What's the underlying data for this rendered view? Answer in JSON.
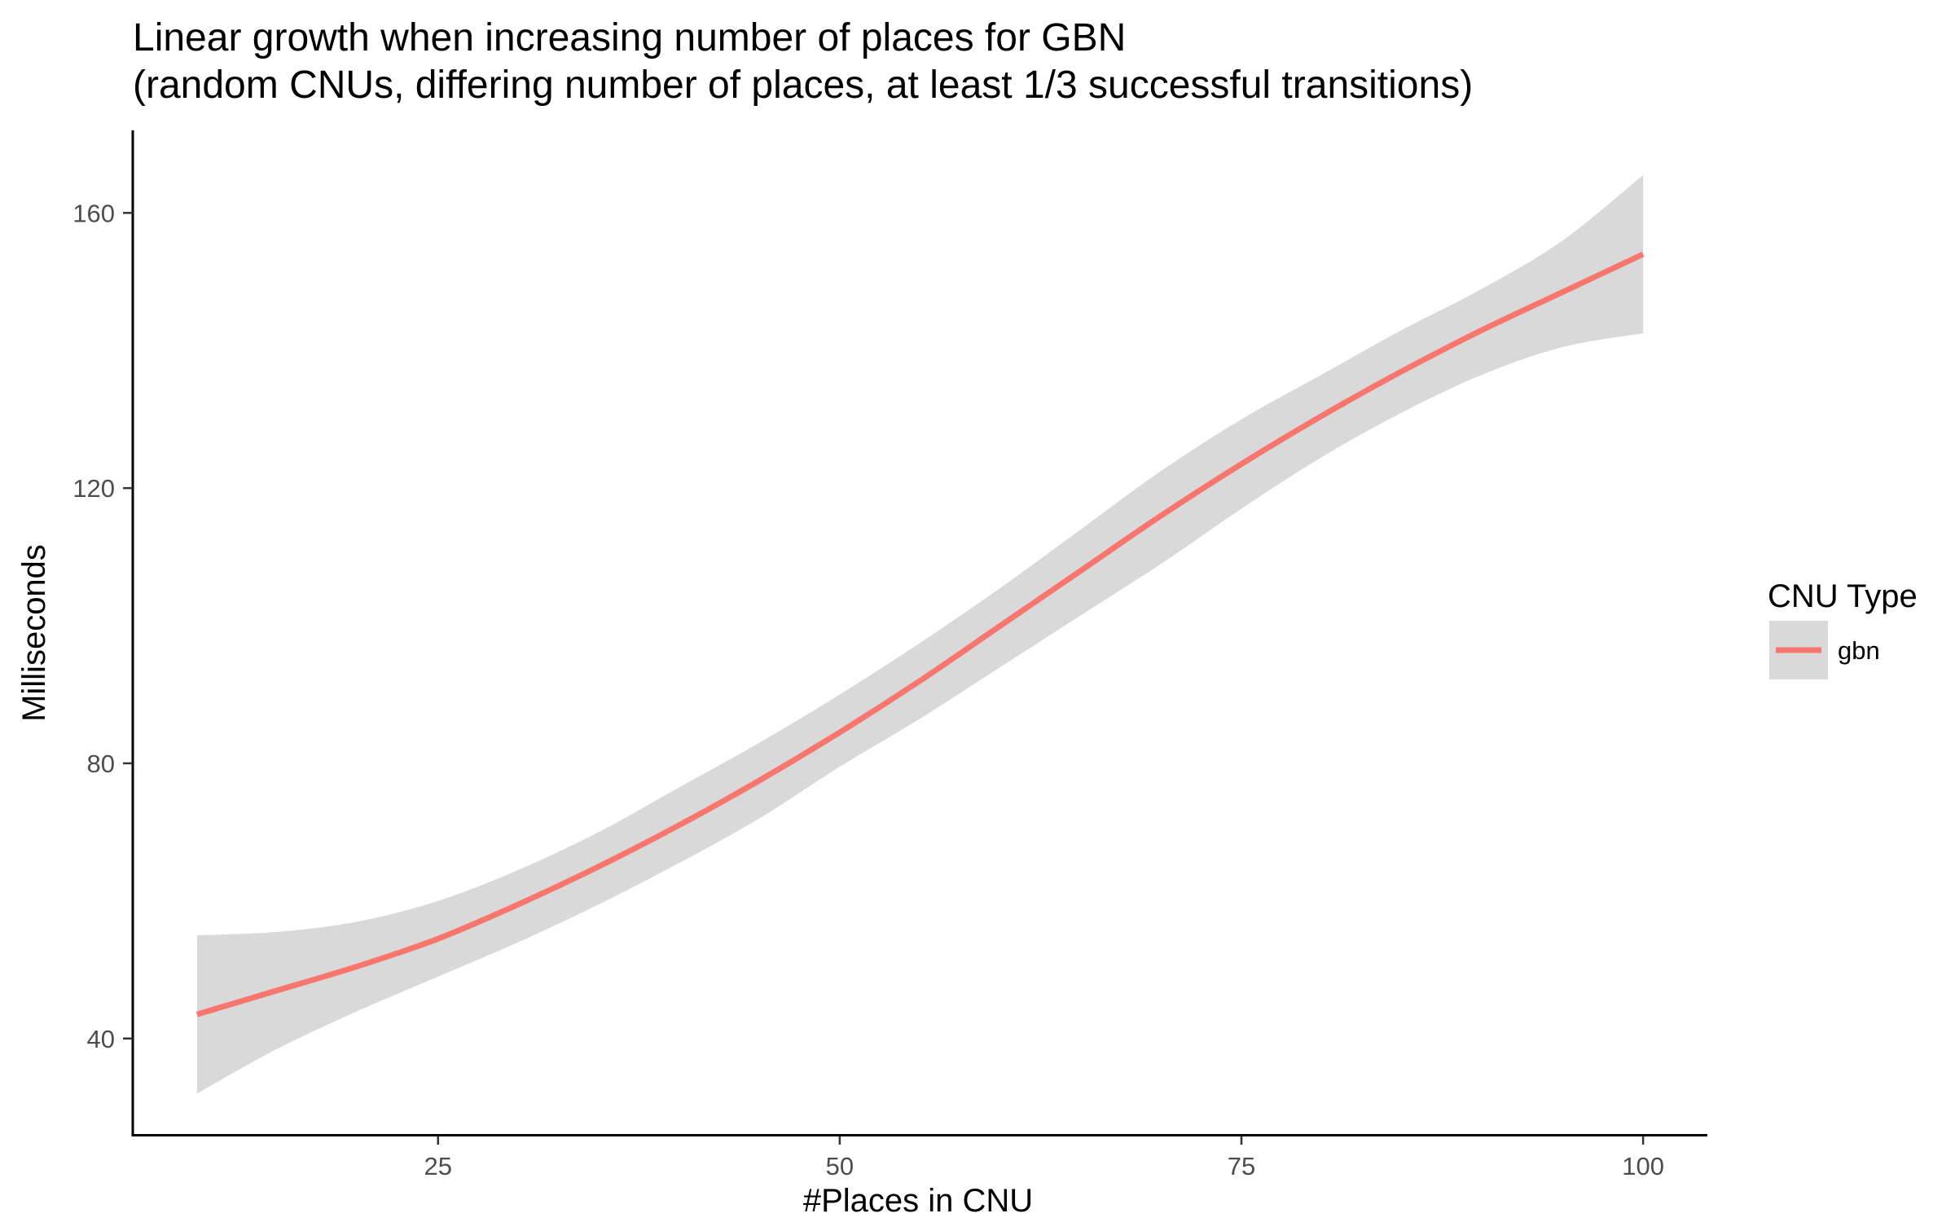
{
  "chart_data": {
    "type": "line",
    "title": "Linear growth when increasing number of places for GBN",
    "subtitle": "(random CNUs, differing number of places, at least 1/3 successful transitions)",
    "xlabel": "#Places in CNU",
    "ylabel": "Milliseconds",
    "xlim": [
      6,
      104
    ],
    "ylim": [
      26,
      172
    ],
    "xticks": [
      25,
      50,
      75,
      100
    ],
    "yticks": [
      40,
      80,
      120,
      160
    ],
    "grid": false,
    "legend": {
      "title": "CNU Type",
      "position": "right",
      "entries": [
        {
          "name": "gbn",
          "color": "#F8766D"
        }
      ]
    },
    "series": [
      {
        "name": "gbn",
        "color": "#F8766D",
        "band_color": "#D9D9D9",
        "x": [
          10,
          15,
          20,
          25,
          30,
          35,
          40,
          45,
          50,
          55,
          60,
          65,
          70,
          75,
          80,
          85,
          90,
          95,
          100
        ],
        "y": [
          43.5,
          47.0,
          50.5,
          54.5,
          59.5,
          65.0,
          71.0,
          77.5,
          84.5,
          92.0,
          100.0,
          108.0,
          116.0,
          123.5,
          130.5,
          137.0,
          143.0,
          148.5,
          154.0
        ],
        "lower": [
          32.0,
          38.5,
          44.0,
          49.0,
          54.0,
          59.5,
          65.5,
          72.0,
          79.5,
          86.5,
          94.0,
          101.5,
          109.0,
          117.0,
          124.5,
          131.0,
          136.5,
          140.5,
          142.5
        ],
        "upper": [
          55.0,
          55.5,
          57.0,
          60.0,
          64.5,
          70.0,
          76.5,
          83.0,
          90.0,
          97.5,
          105.5,
          114.0,
          122.5,
          130.0,
          136.5,
          143.0,
          149.0,
          156.0,
          165.5
        ]
      }
    ]
  }
}
